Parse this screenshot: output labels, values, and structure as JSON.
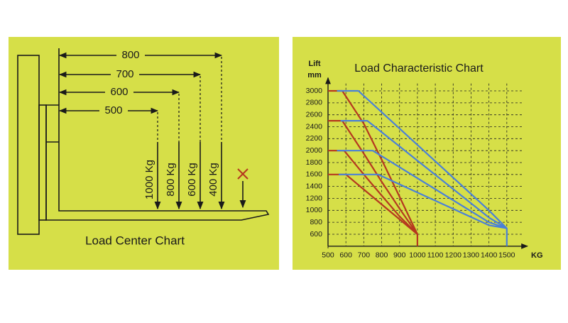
{
  "load_center": {
    "title": "Load Center Chart",
    "distances": [
      800,
      700,
      600,
      500
    ],
    "loads": [
      "1000 Kg",
      "800 Kg",
      "600 Kg",
      "400 Kg"
    ]
  },
  "chart_data": {
    "type": "line",
    "title": "Load Characteristic Chart",
    "ylabel": [
      "Lift",
      "mm"
    ],
    "xlabel": "KG",
    "xlim": [
      500,
      1600
    ],
    "ylim": [
      400,
      3100
    ],
    "xticks": [
      500,
      600,
      700,
      800,
      900,
      1000,
      1100,
      1200,
      1300,
      1400,
      1500
    ],
    "yticks": [
      600,
      800,
      1000,
      1200,
      1400,
      1600,
      1800,
      2000,
      2200,
      2400,
      2600,
      2800,
      3000
    ],
    "grid": true,
    "series": [
      {
        "color": "#b5381f",
        "x": [
          500,
          580,
          700,
          800,
          900,
          1000,
          1000
        ],
        "values": [
          3000,
          3000,
          2450,
          1850,
          1230,
          600,
          400
        ]
      },
      {
        "color": "#b5381f",
        "x": [
          500,
          580,
          700,
          800,
          900,
          1000
        ],
        "values": [
          2500,
          2500,
          1950,
          1480,
          1030,
          600
        ]
      },
      {
        "color": "#b5381f",
        "x": [
          500,
          590,
          700,
          800,
          900,
          1000
        ],
        "values": [
          2000,
          2000,
          1600,
          1250,
          900,
          600
        ]
      },
      {
        "color": "#b5381f",
        "x": [
          500,
          600,
          700,
          800,
          900,
          1000
        ],
        "values": [
          1600,
          1600,
          1350,
          1100,
          850,
          600
        ]
      },
      {
        "color": "#4a80d8",
        "x": [
          550,
          670,
          1400,
          1500,
          1500
        ],
        "values": [
          3000,
          3000,
          1000,
          700,
          400
        ]
      },
      {
        "color": "#4a80d8",
        "x": [
          570,
          720,
          1400,
          1500
        ],
        "values": [
          2500,
          2500,
          880,
          700
        ]
      },
      {
        "color": "#4a80d8",
        "x": [
          550,
          750,
          1400,
          1500
        ],
        "values": [
          2000,
          2000,
          800,
          700
        ]
      },
      {
        "color": "#4a80d8",
        "x": [
          560,
          780,
          1400,
          1500
        ],
        "values": [
          1600,
          1600,
          750,
          700
        ]
      }
    ]
  }
}
